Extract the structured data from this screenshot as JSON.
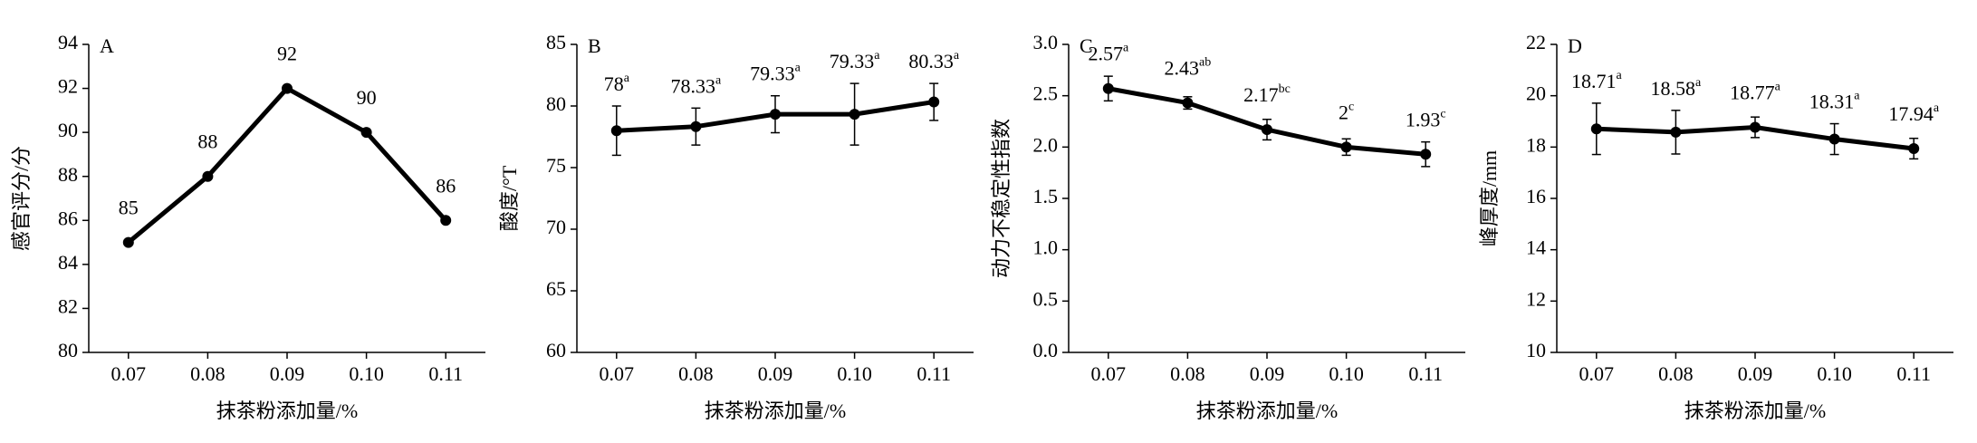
{
  "chart_data": [
    {
      "type": "line",
      "panel_label": "A",
      "xlabel": "抹茶粉添加量/%",
      "ylabel": "感官评分/分",
      "categories": [
        "0.07",
        "0.08",
        "0.09",
        "0.10",
        "0.11"
      ],
      "values": [
        85,
        88,
        92,
        90,
        86
      ],
      "color": "#000000",
      "ylim": [
        80,
        94
      ],
      "yticks": [
        80,
        82,
        84,
        86,
        88,
        90,
        92,
        94
      ]
    },
    {
      "type": "line",
      "panel_label": "B",
      "xlabel": "抹茶粉添加量/%",
      "ylabel": "酸度/°T",
      "categories": [
        "0.07",
        "0.08",
        "0.09",
        "0.10",
        "0.11"
      ],
      "values": [
        78,
        78.33,
        79.33,
        79.33,
        80.33
      ],
      "errors": [
        2,
        1.5,
        1.5,
        2.5,
        1.5
      ],
      "letters": [
        "a",
        "a",
        "a",
        "a",
        "a"
      ],
      "color": "#000000",
      "ylim": [
        60,
        85
      ],
      "yticks": [
        60,
        65,
        70,
        75,
        80,
        85
      ]
    },
    {
      "type": "line",
      "panel_label": "C",
      "xlabel": "抹茶粉添加量/%",
      "ylabel": "动力不稳定性指数",
      "categories": [
        "0.07",
        "0.08",
        "0.09",
        "0.10",
        "0.11"
      ],
      "values": [
        2.57,
        2.43,
        2.17,
        2,
        1.93
      ],
      "errors": [
        0.12,
        0.06,
        0.1,
        0.08,
        0.12
      ],
      "letters": [
        "a",
        "ab",
        "bc",
        "c",
        "c"
      ],
      "color": "#000000",
      "ylim": [
        0,
        3
      ],
      "yticks": [
        {
          "value": 0,
          "label": "0.0"
        },
        0.5,
        {
          "value": 1,
          "label": "1.0"
        },
        1.5,
        {
          "value": 2,
          "label": "2.0"
        },
        2.5,
        {
          "value": 3,
          "label": "3.0"
        }
      ]
    },
    {
      "type": "line",
      "panel_label": "D",
      "xlabel": "抹茶粉添加量/%",
      "ylabel": "峰厚度/mm",
      "categories": [
        "0.07",
        "0.08",
        "0.09",
        "0.10",
        "0.11"
      ],
      "values": [
        18.71,
        18.58,
        18.77,
        18.31,
        17.94
      ],
      "errors": [
        1,
        0.85,
        0.4,
        0.6,
        0.4
      ],
      "letters": [
        "a",
        "a",
        "a",
        "a",
        "a"
      ],
      "color": "#000000",
      "ylim": [
        10,
        22
      ],
      "yticks": [
        10,
        12,
        14,
        16,
        18,
        20,
        22
      ]
    }
  ]
}
